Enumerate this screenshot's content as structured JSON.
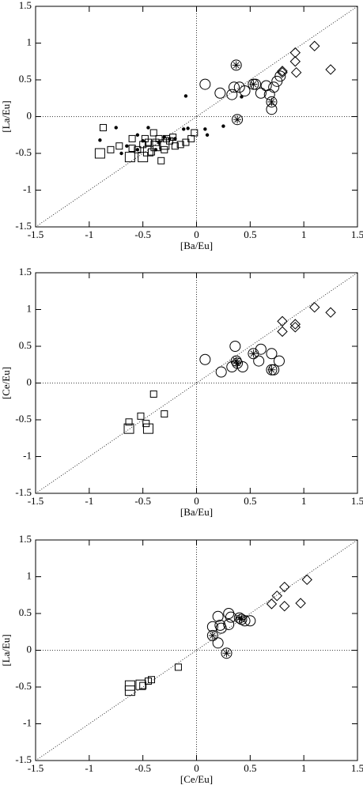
{
  "chart_data": [
    {
      "type": "scatter",
      "x_label": "[Ba/Eu]",
      "y_label": "[La/Eu]",
      "xlim": [
        -1.5,
        1.5
      ],
      "ylim": [
        -1.5,
        1.5
      ],
      "xticks": [
        -1.5,
        -1,
        -0.5,
        0,
        0.5,
        1,
        1.5
      ],
      "yticks": [
        -1.5,
        -1,
        -0.5,
        0,
        0.5,
        1,
        1.5
      ],
      "series": [
        {
          "marker": "square",
          "color": "#000000",
          "x": [
            -0.9,
            -0.62,
            -0.5,
            -0.45,
            -0.38,
            -0.3
          ],
          "values": [
            -0.5,
            -0.55,
            -0.55,
            -0.47,
            -0.4,
            -0.38
          ]
        },
        {
          "marker": "small-square",
          "color": "#000000",
          "x": [
            -0.87,
            -0.8,
            -0.72,
            -0.6,
            -0.6,
            -0.55,
            -0.5,
            -0.48,
            -0.45,
            -0.42,
            -0.4,
            -0.38,
            -0.35,
            -0.33,
            -0.3,
            -0.28,
            -0.25,
            -0.22,
            -0.2,
            -0.15,
            -0.1,
            -0.05,
            -0.02
          ],
          "values": [
            -0.15,
            -0.45,
            -0.4,
            -0.3,
            -0.43,
            -0.45,
            -0.38,
            -0.3,
            -0.35,
            -0.48,
            -0.22,
            -0.35,
            -0.3,
            -0.6,
            -0.45,
            -0.3,
            -0.33,
            -0.28,
            -0.4,
            -0.38,
            -0.35,
            -0.3,
            -0.22
          ]
        },
        {
          "marker": "dot",
          "color": "#000000",
          "x": [
            -0.9,
            -0.75,
            -0.7,
            -0.65,
            -0.55,
            -0.55,
            -0.5,
            -0.45,
            -0.38,
            -0.35,
            -0.3,
            -0.25,
            -0.2,
            -0.12,
            -0.1,
            -0.08,
            0.08,
            0.1,
            0.25,
            0.42
          ],
          "values": [
            -0.32,
            -0.15,
            -0.5,
            -0.4,
            -0.25,
            -0.45,
            -0.33,
            -0.15,
            -0.45,
            -0.35,
            -0.28,
            -0.3,
            -0.3,
            -0.17,
            0.28,
            -0.16,
            -0.17,
            -0.25,
            -0.13,
            0.27
          ]
        },
        {
          "marker": "circle",
          "color": "#000000",
          "x": [
            0.08,
            0.22,
            0.33,
            0.35,
            0.4,
            0.45,
            0.55,
            0.6,
            0.65,
            0.68,
            0.7,
            0.72,
            0.75,
            0.78
          ],
          "values": [
            0.44,
            0.32,
            0.3,
            0.4,
            0.4,
            0.35,
            0.44,
            0.32,
            0.42,
            0.3,
            0.1,
            0.4,
            0.48,
            0.55
          ]
        },
        {
          "marker": "starred-circle",
          "color": "#000000",
          "x": [
            0.37,
            0.38,
            0.53,
            0.7
          ],
          "values": [
            0.7,
            -0.04,
            0.44,
            0.2
          ]
        },
        {
          "marker": "diamond",
          "color": "#000000",
          "x": [
            0.8,
            0.8,
            0.92,
            0.92,
            0.93,
            1.1,
            1.25
          ],
          "values": [
            0.6,
            0.62,
            0.87,
            0.75,
            0.6,
            0.96,
            0.64
          ]
        }
      ]
    },
    {
      "type": "scatter",
      "x_label": "[Ba/Eu]",
      "y_label": "[Ce/Eu]",
      "xlim": [
        -1.5,
        1.5
      ],
      "ylim": [
        -1.5,
        1.5
      ],
      "xticks": [
        -1.5,
        -1,
        -0.5,
        0,
        0.5,
        1,
        1.5
      ],
      "yticks": [
        -1.5,
        -1,
        -0.5,
        0,
        0.5,
        1,
        1.5
      ],
      "series": [
        {
          "marker": "square",
          "color": "#000000",
          "x": [
            -0.63,
            -0.45
          ],
          "values": [
            -0.62,
            -0.62
          ]
        },
        {
          "marker": "small-square",
          "color": "#000000",
          "x": [
            -0.63,
            -0.52,
            -0.47,
            -0.4,
            -0.3
          ],
          "values": [
            -0.53,
            -0.45,
            -0.55,
            -0.15,
            -0.42
          ]
        },
        {
          "marker": "circle",
          "color": "#000000",
          "x": [
            0.08,
            0.23,
            0.33,
            0.36,
            0.43,
            0.58,
            0.6,
            0.7,
            0.72,
            0.77
          ],
          "values": [
            0.32,
            0.15,
            0.22,
            0.5,
            0.22,
            0.3,
            0.46,
            0.4,
            0.18,
            0.3
          ]
        },
        {
          "marker": "starred-circle",
          "color": "#000000",
          "x": [
            0.37,
            0.38,
            0.53,
            0.7
          ],
          "values": [
            0.3,
            0.27,
            0.4,
            0.18
          ]
        },
        {
          "marker": "diamond",
          "color": "#000000",
          "x": [
            0.8,
            0.8,
            0.92,
            0.92,
            1.1,
            1.25
          ],
          "values": [
            0.84,
            0.7,
            0.8,
            0.76,
            1.03,
            0.96
          ]
        }
      ]
    },
    {
      "type": "scatter",
      "x_label": "[Ce/Eu]",
      "y_label": "[La/Eu]",
      "xlim": [
        -1.5,
        1.5
      ],
      "ylim": [
        -1.5,
        1.5
      ],
      "xticks": [
        -1.5,
        -1,
        -0.5,
        0,
        0.5,
        1,
        1.5
      ],
      "yticks": [
        -1.5,
        -1,
        -0.5,
        0,
        0.5,
        1,
        1.5
      ],
      "series": [
        {
          "marker": "square",
          "color": "#000000",
          "x": [
            -0.62,
            -0.62,
            -0.52
          ],
          "values": [
            -0.55,
            -0.48,
            -0.47
          ]
        },
        {
          "marker": "small-square",
          "color": "#000000",
          "x": [
            -0.5,
            -0.45,
            -0.42,
            -0.17
          ],
          "values": [
            -0.48,
            -0.42,
            -0.4,
            -0.23
          ]
        },
        {
          "marker": "circle",
          "color": "#000000",
          "x": [
            0.15,
            0.2,
            0.2,
            0.22,
            0.23,
            0.3,
            0.3,
            0.32,
            0.45,
            0.5
          ],
          "values": [
            0.32,
            0.46,
            0.1,
            0.34,
            0.3,
            0.35,
            0.5,
            0.45,
            0.4,
            0.4
          ]
        },
        {
          "marker": "starred-circle",
          "color": "#000000",
          "x": [
            0.15,
            0.28,
            0.4,
            0.42
          ],
          "values": [
            0.2,
            -0.04,
            0.44,
            0.42
          ]
        },
        {
          "marker": "diamond",
          "color": "#000000",
          "x": [
            0.7,
            0.75,
            0.82,
            0.82,
            0.97,
            1.03
          ],
          "values": [
            0.63,
            0.74,
            0.86,
            0.6,
            0.64,
            0.96
          ]
        }
      ]
    }
  ]
}
